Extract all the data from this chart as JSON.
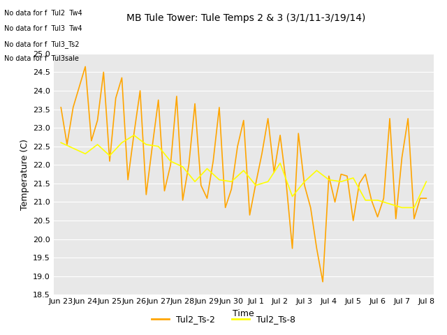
{
  "title": "MB Tule Tower: Tule Temps 2 & 3 (3/1/11-3/19/14)",
  "xlabel": "Time",
  "ylabel": "Temperature (C)",
  "ylim": [
    18.5,
    25.0
  ],
  "bg_color": "#e8e8e8",
  "line1_color": "#FFA500",
  "line2_color": "#FFFF00",
  "legend_labels": [
    "Tul2_Ts-2",
    "Tul2_Ts-8"
  ],
  "annotations": [
    "No data for f  Tul2  Tw4",
    "No data for f  Tul3  Tw4",
    "No data for f  Tul3_Ts2",
    "No data for f  Tul3sale"
  ],
  "xtick_labels": [
    "Jun 23",
    "Jun 24",
    "Jun 25",
    "Jun 26",
    "Jun 27",
    "Jun 28",
    "Jun 29",
    "Jun 30",
    "Jul 1",
    "Jul 2",
    "Jul 3",
    "Jul 4",
    "Jul 5",
    "Jul 6",
    "Jul 7",
    "Jul 8"
  ],
  "ytick_vals": [
    18.5,
    19.0,
    19.5,
    20.0,
    20.5,
    21.0,
    21.5,
    22.0,
    22.5,
    23.0,
    23.5,
    24.0,
    24.5,
    25.0
  ],
  "ts2_x": [
    0,
    0.25,
    0.5,
    1.0,
    1.25,
    1.5,
    1.75,
    2.0,
    2.25,
    2.5,
    2.75,
    3.0,
    3.25,
    3.5,
    3.75,
    4.0,
    4.25,
    4.5,
    4.75,
    5.0,
    5.25,
    5.5,
    5.75,
    6.0,
    6.25,
    6.5,
    6.75,
    7.0,
    7.25,
    7.5,
    7.75,
    8.0,
    8.25,
    8.5,
    8.75,
    9.0,
    9.25,
    9.5,
    9.75,
    10.0,
    10.25,
    10.5,
    10.75,
    11.0,
    11.25,
    11.5,
    11.75,
    12.0,
    12.25,
    12.5,
    12.75,
    13.0,
    13.25,
    13.5,
    13.75,
    14.0,
    14.25,
    14.5,
    14.75,
    15.0
  ],
  "ts2_y": [
    23.55,
    22.55,
    23.55,
    24.65,
    22.65,
    23.2,
    24.5,
    22.1,
    23.8,
    24.35,
    21.6,
    22.85,
    24.0,
    21.2,
    22.5,
    23.75,
    21.3,
    22.0,
    23.85,
    21.05,
    22.0,
    23.65,
    21.45,
    21.1,
    22.1,
    23.55,
    20.85,
    21.35,
    22.5,
    23.2,
    20.65,
    21.5,
    22.3,
    23.25,
    21.8,
    22.8,
    21.5,
    19.75,
    22.85,
    21.45,
    20.85,
    19.75,
    18.85,
    21.7,
    21.0,
    21.75,
    21.7,
    20.5,
    21.5,
    21.75,
    21.05,
    20.6,
    21.1,
    23.25,
    20.55,
    22.2,
    23.25,
    20.55,
    21.1,
    21.1
  ],
  "ts8_x": [
    0,
    0.5,
    1.0,
    1.5,
    2.0,
    2.5,
    3.0,
    3.5,
    4.0,
    4.5,
    5.0,
    5.5,
    6.0,
    6.5,
    7.0,
    7.5,
    8.0,
    8.5,
    9.0,
    9.5,
    10.0,
    10.5,
    11.0,
    11.5,
    12.0,
    12.5,
    13.0,
    13.5,
    14.0,
    14.5,
    15.0
  ],
  "ts8_y": [
    22.6,
    22.45,
    22.3,
    22.55,
    22.25,
    22.6,
    22.8,
    22.55,
    22.5,
    22.1,
    21.95,
    21.55,
    21.9,
    21.6,
    21.55,
    21.85,
    21.45,
    21.55,
    22.05,
    21.15,
    21.55,
    21.85,
    21.6,
    21.55,
    21.65,
    21.05,
    21.05,
    20.95,
    20.85,
    20.85,
    21.55
  ]
}
